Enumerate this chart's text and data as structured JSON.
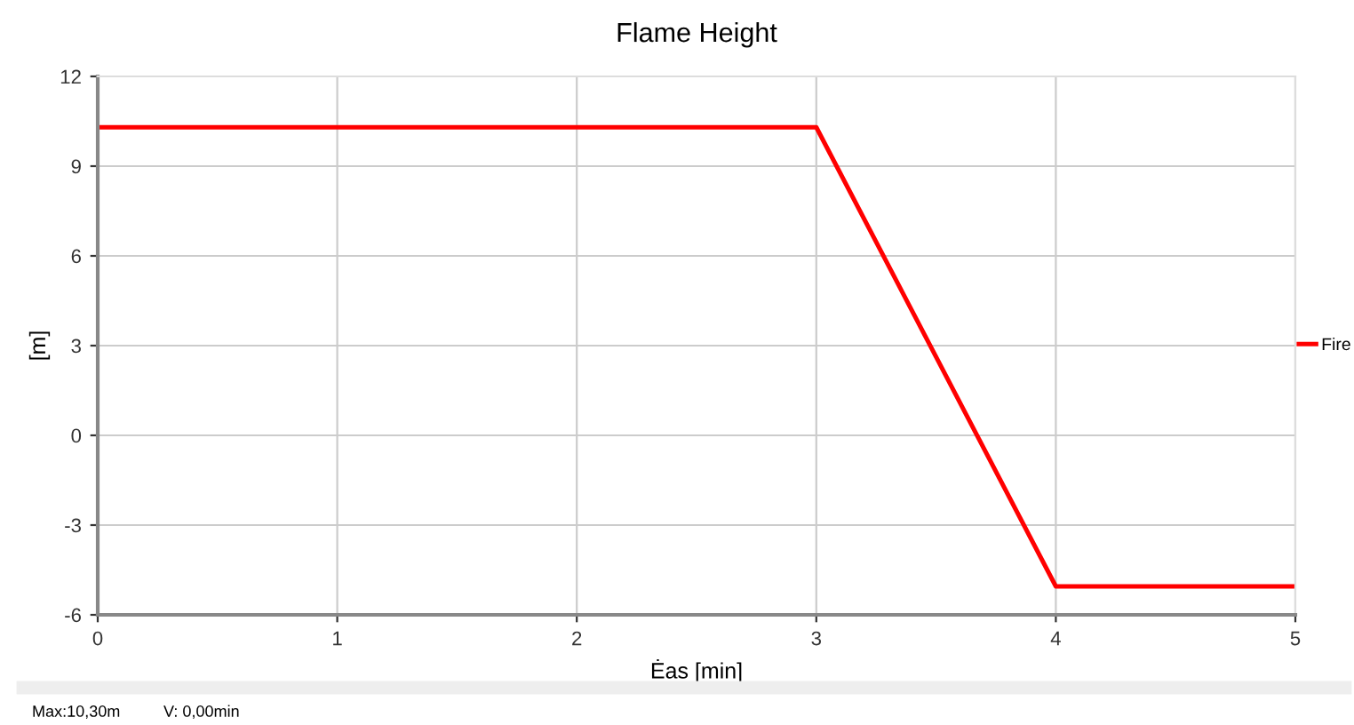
{
  "chart_data": {
    "type": "line",
    "title": "Flame Height",
    "xlabel": "Ėas [min]",
    "ylabel": "[m]",
    "x": [
      0,
      3,
      4,
      5
    ],
    "series": [
      {
        "name": "Fire",
        "color": "#ff0000",
        "values": [
          10.3,
          10.3,
          -5.05,
          -5.05
        ]
      }
    ],
    "xlim": [
      0,
      5
    ],
    "xticks": [
      0,
      1,
      2,
      3,
      4,
      5
    ],
    "ylim": [
      -6,
      12
    ],
    "yticks": [
      -6,
      -3,
      0,
      3,
      6,
      9,
      12
    ],
    "grid": true,
    "legend": "right",
    "marker": "none",
    "line_style": "solid",
    "annotations": [
      "Max:10,30m",
      "V: 0,00min"
    ]
  }
}
